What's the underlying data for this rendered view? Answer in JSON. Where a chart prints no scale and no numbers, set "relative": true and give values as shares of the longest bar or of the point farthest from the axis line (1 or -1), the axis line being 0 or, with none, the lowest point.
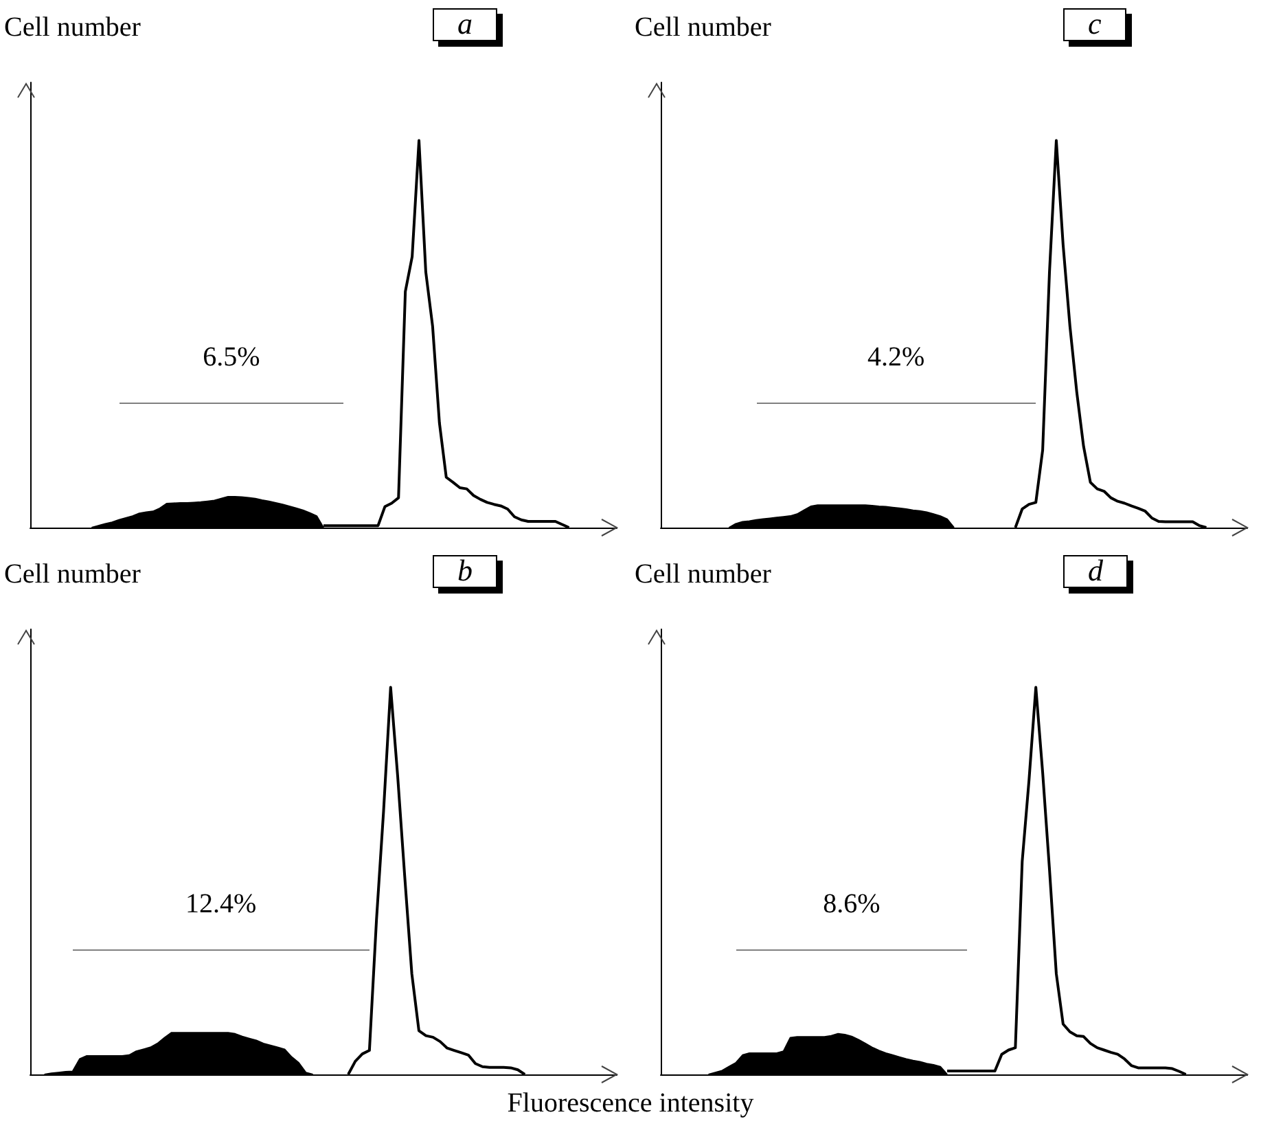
{
  "chart_data": [
    {
      "type": "area",
      "title": "a",
      "ylabel": "Cell number",
      "relative": true,
      "marker": "none",
      "annotations": [
        "6.5%"
      ],
      "categories": [
        null,
        null,
        null,
        null,
        null,
        null,
        null,
        null,
        null,
        null,
        null,
        null,
        null,
        null,
        null,
        null,
        null,
        null,
        null,
        null,
        null,
        null,
        null,
        null,
        null,
        null,
        null,
        null,
        null,
        null,
        null,
        null,
        null,
        null,
        null,
        null,
        null,
        null,
        null,
        null,
        null,
        null,
        null,
        null,
        null,
        null,
        null,
        null,
        null,
        null,
        null,
        null,
        null,
        null,
        null,
        null,
        null,
        null,
        null,
        null,
        null,
        null,
        null,
        null,
        null,
        null,
        null,
        null,
        null,
        null,
        null,
        null,
        null,
        null,
        null,
        null,
        null,
        null,
        null,
        null,
        null,
        null,
        null,
        null,
        null,
        null,
        null
      ],
      "series": [
        {
          "color": "#000000",
          "values": [
            null,
            null,
            null,
            null,
            null,
            null,
            null,
            null,
            null,
            0,
            0.005,
            0.01,
            0.014,
            0.02,
            0.025,
            0.03,
            0.037,
            0.04,
            0.042,
            0.05,
            0.062,
            0.063,
            0.064,
            0.064,
            0.065,
            0.066,
            0.068,
            0.07,
            0.075,
            0.08,
            0.08,
            0.079,
            0.077,
            0.075,
            0.071,
            0.068,
            0.064,
            0.06,
            0.055,
            0.05,
            0.045,
            0.038,
            0.03,
            0,
            null,
            null,
            null,
            null,
            null,
            null,
            null,
            null,
            null,
            null,
            null,
            null,
            null,
            null,
            null,
            null,
            null,
            null,
            null,
            null,
            null,
            null,
            null,
            null,
            null,
            null,
            null,
            null,
            null,
            null,
            null,
            null,
            null,
            null,
            null,
            null,
            null,
            null,
            null,
            null,
            null,
            null,
            null
          ]
        },
        {
          "type": "line",
          "color": "#000000",
          "values": [
            null,
            null,
            null,
            null,
            null,
            null,
            null,
            null,
            null,
            null,
            null,
            null,
            null,
            null,
            null,
            null,
            null,
            null,
            null,
            null,
            null,
            null,
            null,
            null,
            null,
            null,
            null,
            null,
            null,
            null,
            null,
            null,
            null,
            null,
            null,
            null,
            null,
            null,
            null,
            null,
            null,
            null,
            null,
            0.005,
            0.005,
            0.005,
            0.005,
            0.005,
            0.005,
            0.005,
            0.005,
            0.005,
            0.054,
            0.063,
            0.077,
            0.61,
            0.7,
            1,
            0.66,
            0.52,
            0.27,
            0.13,
            0.117,
            0.103,
            0.1,
            0.083,
            0.073,
            0.065,
            0.06,
            0.056,
            0.048,
            0.028,
            0.02,
            0.016,
            0.016,
            0.016,
            0.016,
            0.016,
            0.008,
            0,
            null,
            null,
            null,
            null,
            null,
            null,
            null
          ]
        }
      ]
    },
    {
      "type": "area",
      "title": "c",
      "ylabel": "Cell number",
      "relative": true,
      "marker": "none",
      "annotations": [
        "4.2%"
      ],
      "categories": [
        null,
        null,
        null,
        null,
        null,
        null,
        null,
        null,
        null,
        null,
        null,
        null,
        null,
        null,
        null,
        null,
        null,
        null,
        null,
        null,
        null,
        null,
        null,
        null,
        null,
        null,
        null,
        null,
        null,
        null,
        null,
        null,
        null,
        null,
        null,
        null,
        null,
        null,
        null,
        null,
        null,
        null,
        null,
        null,
        null,
        null,
        null,
        null,
        null,
        null,
        null,
        null,
        null,
        null,
        null,
        null,
        null,
        null,
        null,
        null,
        null,
        null,
        null,
        null,
        null,
        null,
        null,
        null,
        null,
        null,
        null,
        null,
        null,
        null,
        null,
        null,
        null,
        null,
        null,
        null,
        null,
        null,
        null,
        null,
        null,
        null,
        null
      ],
      "series": [
        {
          "color": "#000000",
          "values": [
            null,
            null,
            null,
            null,
            null,
            null,
            null,
            null,
            null,
            null,
            0,
            0.01,
            0.015,
            0.017,
            0.02,
            0.022,
            0.024,
            0.026,
            0.028,
            0.03,
            0.035,
            0.045,
            0.055,
            0.058,
            0.058,
            0.058,
            0.058,
            0.058,
            0.058,
            0.058,
            0.058,
            0.057,
            0.055,
            0.054,
            0.052,
            0.05,
            0.048,
            0.045,
            0.043,
            0.04,
            0.035,
            0.03,
            0.022,
            0,
            null,
            null,
            null,
            null,
            null,
            null,
            null,
            null,
            null,
            null,
            null,
            null,
            null,
            null,
            null,
            null,
            null,
            null,
            null,
            null,
            null,
            null,
            null,
            null,
            null,
            null,
            null,
            null,
            null,
            null,
            null,
            null,
            null,
            null,
            null,
            null,
            null,
            null,
            null,
            null,
            null,
            null,
            null
          ]
        },
        {
          "type": "line",
          "color": "#000000",
          "values": [
            null,
            null,
            null,
            null,
            null,
            null,
            null,
            null,
            null,
            null,
            null,
            null,
            null,
            null,
            null,
            null,
            null,
            null,
            null,
            null,
            null,
            null,
            null,
            null,
            null,
            null,
            null,
            null,
            null,
            null,
            null,
            null,
            null,
            null,
            null,
            null,
            null,
            null,
            null,
            null,
            null,
            null,
            null,
            null,
            null,
            null,
            null,
            null,
            null,
            null,
            null,
            null,
            0,
            0.048,
            0.06,
            0.065,
            0.2,
            0.66,
            1,
            0.73,
            0.52,
            0.35,
            0.21,
            0.117,
            0.1,
            0.094,
            0.077,
            0.068,
            0.063,
            0.056,
            0.05,
            0.043,
            0.025,
            0.016,
            0.015,
            0.015,
            0.015,
            0.015,
            0.015,
            0.005,
            0,
            null,
            null,
            null,
            null,
            null,
            null
          ]
        }
      ]
    },
    {
      "type": "area",
      "title": "b",
      "ylabel": "Cell number",
      "xlabel": "Fluorescence intensity",
      "relative": true,
      "marker": "none",
      "annotations": [
        "12.4%"
      ],
      "categories": [
        null,
        null,
        null,
        null,
        null,
        null,
        null,
        null,
        null,
        null,
        null,
        null,
        null,
        null,
        null,
        null,
        null,
        null,
        null,
        null,
        null,
        null,
        null,
        null,
        null,
        null,
        null,
        null,
        null,
        null,
        null,
        null,
        null,
        null,
        null,
        null,
        null,
        null,
        null,
        null,
        null,
        null,
        null,
        null,
        null,
        null,
        null,
        null,
        null,
        null,
        null,
        null,
        null,
        null,
        null,
        null,
        null,
        null,
        null,
        null,
        null,
        null,
        null,
        null,
        null,
        null,
        null,
        null,
        null,
        null,
        null,
        null,
        null,
        null,
        null,
        null,
        null,
        null,
        null,
        null,
        null,
        null,
        null,
        null
      ],
      "series": [
        {
          "color": "#000000",
          "values": [
            null,
            null,
            0,
            0.003,
            0.005,
            0.007,
            0.008,
            0.04,
            0.048,
            0.048,
            0.048,
            0.048,
            0.048,
            0.048,
            0.05,
            0.06,
            0.065,
            0.07,
            0.08,
            0.095,
            0.108,
            0.108,
            0.108,
            0.108,
            0.108,
            0.108,
            0.108,
            0.108,
            0.108,
            0.105,
            0.098,
            0.093,
            0.088,
            0.08,
            0.075,
            0.07,
            0.065,
            0.045,
            0.03,
            0.005,
            0,
            null,
            null,
            null,
            null,
            null,
            null,
            null,
            null,
            null,
            null,
            null,
            null,
            null,
            null,
            null,
            null,
            null,
            null,
            null,
            null,
            null,
            null,
            null,
            null,
            null,
            null,
            null,
            null,
            null,
            null,
            null,
            null,
            null,
            null,
            null,
            null,
            null,
            null,
            null,
            null,
            null,
            null,
            null
          ]
        },
        {
          "type": "line",
          "color": "#000000",
          "values": [
            null,
            null,
            null,
            null,
            null,
            null,
            null,
            null,
            null,
            null,
            null,
            null,
            null,
            null,
            null,
            null,
            null,
            null,
            null,
            null,
            null,
            null,
            null,
            null,
            null,
            null,
            null,
            null,
            null,
            null,
            null,
            null,
            null,
            null,
            null,
            null,
            null,
            null,
            null,
            null,
            null,
            null,
            null,
            null,
            null,
            0,
            0.034,
            0.053,
            0.062,
            0.4,
            0.68,
            1,
            0.77,
            0.51,
            0.26,
            0.113,
            0.1,
            0.096,
            0.085,
            0.068,
            0.062,
            0.056,
            0.05,
            0.028,
            0.02,
            0.018,
            0.018,
            0.018,
            0.017,
            0.012,
            0,
            null,
            null,
            null,
            null,
            null,
            null,
            null,
            null,
            null,
            null,
            null,
            null,
            null
          ]
        }
      ]
    },
    {
      "type": "area",
      "title": "d",
      "ylabel": "Cell number",
      "relative": true,
      "marker": "none",
      "annotations": [
        "8.6%"
      ],
      "categories": [
        null,
        null,
        null,
        null,
        null,
        null,
        null,
        null,
        null,
        null,
        null,
        null,
        null,
        null,
        null,
        null,
        null,
        null,
        null,
        null,
        null,
        null,
        null,
        null,
        null,
        null,
        null,
        null,
        null,
        null,
        null,
        null,
        null,
        null,
        null,
        null,
        null,
        null,
        null,
        null,
        null,
        null,
        null,
        null,
        null,
        null,
        null,
        null,
        null,
        null,
        null,
        null,
        null,
        null,
        null,
        null,
        null,
        null,
        null,
        null,
        null,
        null,
        null,
        null,
        null,
        null,
        null,
        null,
        null,
        null,
        null,
        null,
        null,
        null,
        null,
        null,
        null,
        null,
        null,
        null,
        null,
        null,
        null,
        null,
        null,
        null,
        null
      ],
      "series": [
        {
          "color": "#000000",
          "values": [
            null,
            null,
            null,
            null,
            null,
            null,
            null,
            0,
            0.005,
            0.01,
            0.02,
            0.03,
            0.05,
            0.055,
            0.055,
            0.055,
            0.055,
            0.055,
            0.06,
            0.095,
            0.097,
            0.097,
            0.097,
            0.097,
            0.097,
            0.1,
            0.105,
            0.103,
            0.098,
            0.09,
            0.08,
            0.07,
            0.062,
            0.055,
            0.05,
            0.045,
            0.04,
            0.036,
            0.033,
            0.028,
            0.025,
            0.02,
            0,
            null,
            null,
            null,
            null,
            null,
            null,
            null,
            null,
            null,
            null,
            null,
            null,
            null,
            null,
            null,
            null,
            null,
            null,
            null,
            null,
            null,
            null,
            null,
            null,
            null,
            null,
            null,
            null,
            null,
            null,
            null,
            null,
            null,
            null,
            null,
            null,
            null,
            null,
            null,
            null,
            null,
            null,
            null,
            null
          ]
        },
        {
          "type": "line",
          "color": "#000000",
          "values": [
            null,
            null,
            null,
            null,
            null,
            null,
            null,
            null,
            null,
            null,
            null,
            null,
            null,
            null,
            null,
            null,
            null,
            null,
            null,
            null,
            null,
            null,
            null,
            null,
            null,
            null,
            null,
            null,
            null,
            null,
            null,
            null,
            null,
            null,
            null,
            null,
            null,
            null,
            null,
            null,
            null,
            null,
            0.009,
            0.009,
            0.009,
            0.009,
            0.009,
            0.009,
            0.009,
            0.009,
            0.052,
            0.063,
            0.069,
            0.55,
            0.76,
            1,
            0.78,
            0.53,
            0.26,
            0.13,
            0.11,
            0.1,
            0.098,
            0.08,
            0.069,
            0.063,
            0.057,
            0.052,
            0.04,
            0.023,
            0.017,
            0.017,
            0.017,
            0.017,
            0.017,
            0.015,
            0.008,
            0,
            null,
            null,
            null,
            null,
            null,
            null,
            null,
            null,
            null
          ]
        }
      ]
    }
  ]
}
